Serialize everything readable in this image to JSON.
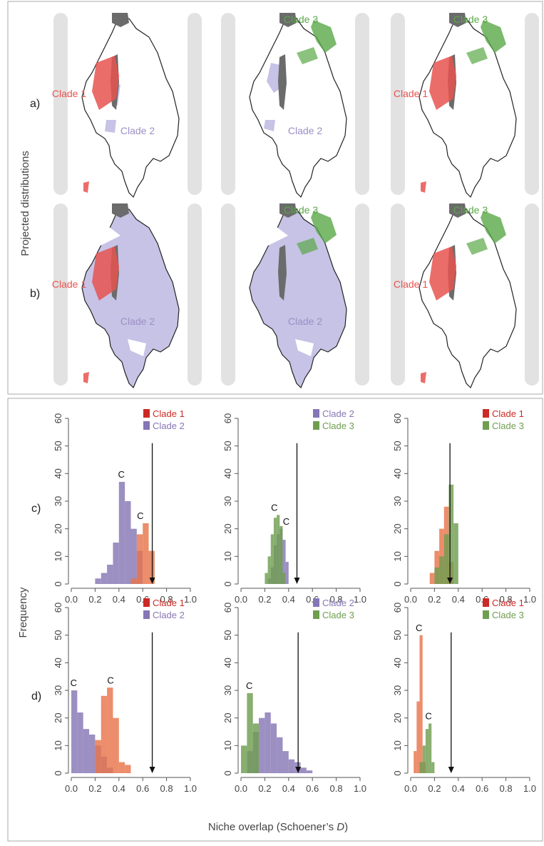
{
  "top_panel": {
    "ylabel": "Projected distributions",
    "row_labels": [
      "a)",
      "b)"
    ],
    "maps": [
      [
        {
          "labels": [
            {
              "text": "Clade 1",
              "clade": "clade1"
            },
            {
              "text": "Clade 2",
              "clade": "clade2"
            }
          ]
        },
        {
          "labels": [
            {
              "text": "Clade 3",
              "clade": "clade3"
            },
            {
              "text": "Clade 2",
              "clade": "clade2"
            }
          ]
        },
        {
          "labels": [
            {
              "text": "Clade 3",
              "clade": "clade3"
            },
            {
              "text": "Clade 1",
              "clade": "clade1"
            }
          ]
        }
      ],
      [
        {
          "labels": [
            {
              "text": "Clade 1",
              "clade": "clade1"
            },
            {
              "text": "Clade 2",
              "clade": "clade2"
            }
          ]
        },
        {
          "labels": [
            {
              "text": "Clade 3",
              "clade": "clade3"
            },
            {
              "text": "Clade 2",
              "clade": "clade2"
            }
          ]
        },
        {
          "labels": [
            {
              "text": "Clade 3",
              "clade": "clade3"
            },
            {
              "text": "Clade 1",
              "clade": "clade1"
            }
          ]
        }
      ]
    ]
  },
  "bottom_panel": {
    "ylabel": "Frequency",
    "xlabel_text": "Niche overlap (Schoener’s ",
    "xlabel_italic": "D",
    "xlabel_close": ")",
    "row_labels": [
      "c)",
      "d)"
    ]
  },
  "colors": {
    "clade1": "#e8534f",
    "clade2": "#9b8fc6",
    "clade3": "#5aa847",
    "legend_clade1": "#cc2a24",
    "hist_orange": "#e8744a",
    "hist_purple": "#8676b5",
    "hist_green": "#6f9e50",
    "map_fill": "#c6c3e6",
    "lake": "#6b6b6b"
  },
  "chart_data": [
    {
      "type": "bar",
      "panel": "c1",
      "xlim": [
        0,
        1
      ],
      "ylim": [
        0,
        60
      ],
      "xticks": [
        "0.0",
        "0.2",
        "0.4",
        "0.6",
        "0.8",
        "1.0"
      ],
      "yticks": [
        "0",
        "10",
        "20",
        "30",
        "40",
        "50",
        "60"
      ],
      "legend": [
        {
          "name": "Clade 1",
          "color": "legend_clade1"
        },
        {
          "name": "Clade 2",
          "color": "hist_purple"
        }
      ],
      "arrow_x": 0.68,
      "bin_width": 0.05,
      "series": [
        {
          "name": "Clade 2",
          "color": "hist_purple",
          "x": [
            0.2,
            0.25,
            0.3,
            0.35,
            0.4,
            0.45,
            0.5,
            0.55
          ],
          "values": [
            2,
            4,
            7,
            15,
            37,
            30,
            20,
            12
          ]
        },
        {
          "name": "Clade 1",
          "color": "hist_orange",
          "x": [
            0.5,
            0.55,
            0.6,
            0.65
          ],
          "values": [
            2,
            18,
            22,
            12
          ]
        }
      ],
      "annotations": [
        {
          "text": "C",
          "x": 0.42,
          "y": 38
        },
        {
          "text": "C",
          "x": 0.58,
          "y": 23
        }
      ]
    },
    {
      "type": "bar",
      "panel": "c2",
      "xlim": [
        0,
        1
      ],
      "ylim": [
        0,
        60
      ],
      "xticks": [
        "0.0",
        "0.2",
        "0.4",
        "0.6",
        "0.8",
        "1.0"
      ],
      "yticks": [
        "0",
        "10",
        "20",
        "30",
        "40",
        "50",
        "60"
      ],
      "legend": [
        {
          "name": "Clade 2",
          "color": "hist_purple"
        },
        {
          "name": "Clade 3",
          "color": "hist_green"
        }
      ],
      "arrow_x": 0.47,
      "bin_width": 0.025,
      "series": [
        {
          "name": "Clade 2",
          "color": "hist_purple",
          "x": [
            0.225,
            0.25,
            0.275,
            0.3,
            0.325,
            0.35,
            0.375
          ],
          "values": [
            2,
            6,
            14,
            18,
            20,
            16,
            8
          ]
        },
        {
          "name": "Clade 3",
          "color": "hist_green",
          "x": [
            0.2,
            0.225,
            0.25,
            0.275,
            0.3,
            0.325,
            0.35
          ],
          "values": [
            4,
            10,
            18,
            24,
            25,
            21,
            4
          ]
        }
      ],
      "annotations": [
        {
          "text": "C",
          "x": 0.28,
          "y": 26
        },
        {
          "text": "C",
          "x": 0.38,
          "y": 21
        }
      ]
    },
    {
      "type": "bar",
      "panel": "c3",
      "xlim": [
        0,
        1
      ],
      "ylim": [
        0,
        60
      ],
      "xticks": [
        "0.0",
        "0.2",
        "0.4",
        "0.6",
        "0.8",
        "1.0"
      ],
      "yticks": [
        "0",
        "10",
        "20",
        "30",
        "40",
        "50",
        "60"
      ],
      "legend": [
        {
          "name": "Clade 1",
          "color": "legend_clade1"
        },
        {
          "name": "Clade 3",
          "color": "hist_green"
        }
      ],
      "arrow_x": 0.33,
      "bin_width": 0.04,
      "series": [
        {
          "name": "Clade 1",
          "color": "hist_orange",
          "x": [
            0.16,
            0.2,
            0.24,
            0.28,
            0.32
          ],
          "values": [
            4,
            12,
            20,
            28,
            8
          ]
        },
        {
          "name": "Clade 3",
          "color": "hist_green",
          "x": [
            0.2,
            0.24,
            0.28,
            0.32,
            0.36
          ],
          "values": [
            6,
            10,
            18,
            36,
            22
          ]
        }
      ],
      "annotations": []
    },
    {
      "type": "bar",
      "panel": "d1",
      "xlim": [
        0,
        1
      ],
      "ylim": [
        0,
        60
      ],
      "xticks": [
        "0.0",
        "0.2",
        "0.4",
        "0.6",
        "0.8",
        "1.0"
      ],
      "yticks": [
        "0",
        "10",
        "20",
        "30",
        "40",
        "50",
        "60"
      ],
      "legend": [
        {
          "name": "Clade 1",
          "color": "legend_clade1"
        },
        {
          "name": "Clade 2",
          "color": "hist_purple"
        }
      ],
      "arrow_x": 0.68,
      "bin_width": 0.05,
      "series": [
        {
          "name": "Clade 2",
          "color": "hist_purple",
          "x": [
            0,
            0.05,
            0.1,
            0.15,
            0.2,
            0.25,
            0.3
          ],
          "values": [
            30,
            22,
            16,
            14,
            10,
            6,
            2
          ]
        },
        {
          "name": "Clade 1",
          "color": "hist_orange",
          "x": [
            0.2,
            0.25,
            0.3,
            0.35,
            0.4,
            0.45
          ],
          "values": [
            12,
            28,
            31,
            20,
            4,
            3
          ]
        }
      ],
      "annotations": [
        {
          "text": "C",
          "x": 0.02,
          "y": 31
        },
        {
          "text": "C",
          "x": 0.33,
          "y": 32
        }
      ]
    },
    {
      "type": "bar",
      "panel": "d2",
      "xlim": [
        0,
        1
      ],
      "ylim": [
        0,
        60
      ],
      "xticks": [
        "0.0",
        "0.2",
        "0.4",
        "0.6",
        "0.8",
        "1.0"
      ],
      "yticks": [
        "0",
        "10",
        "20",
        "30",
        "40",
        "50",
        "60"
      ],
      "legend": [
        {
          "name": "Clade 2",
          "color": "hist_purple"
        },
        {
          "name": "Clade 3",
          "color": "hist_green"
        }
      ],
      "arrow_x": 0.48,
      "bin_width": 0.05,
      "series": [
        {
          "name": "Clade 2",
          "color": "hist_purple",
          "x": [
            0.05,
            0.1,
            0.15,
            0.2,
            0.25,
            0.3,
            0.35,
            0.4,
            0.45,
            0.5,
            0.55
          ],
          "values": [
            8,
            15,
            20,
            22,
            18,
            13,
            8,
            5,
            4,
            2,
            1
          ]
        },
        {
          "name": "Clade 3",
          "color": "hist_green",
          "x": [
            0,
            0.05,
            0.1
          ],
          "values": [
            10,
            29,
            18
          ]
        }
      ],
      "annotations": [
        {
          "text": "C",
          "x": 0.07,
          "y": 30
        }
      ]
    },
    {
      "type": "bar",
      "panel": "d3",
      "xlim": [
        0,
        1
      ],
      "ylim": [
        0,
        60
      ],
      "xticks": [
        "0.0",
        "0.2",
        "0.4",
        "0.6",
        "0.8",
        "1.0"
      ],
      "yticks": [
        "0",
        "10",
        "20",
        "30",
        "40",
        "50",
        "60"
      ],
      "legend": [
        {
          "name": "Clade 1",
          "color": "legend_clade1"
        },
        {
          "name": "Clade 3",
          "color": "hist_green"
        }
      ],
      "arrow_x": 0.34,
      "bin_width": 0.025,
      "series": [
        {
          "name": "Clade 1",
          "color": "hist_orange",
          "x": [
            0.025,
            0.05,
            0.075,
            0.1
          ],
          "values": [
            8,
            26,
            50,
            4
          ]
        },
        {
          "name": "Clade 3",
          "color": "hist_green",
          "x": [
            0.075,
            0.1,
            0.125,
            0.15,
            0.175
          ],
          "values": [
            4,
            10,
            16,
            18,
            4
          ]
        }
      ],
      "annotations": [
        {
          "text": "C",
          "x": 0.07,
          "y": 51
        },
        {
          "text": "C",
          "x": 0.15,
          "y": 19
        }
      ]
    }
  ]
}
